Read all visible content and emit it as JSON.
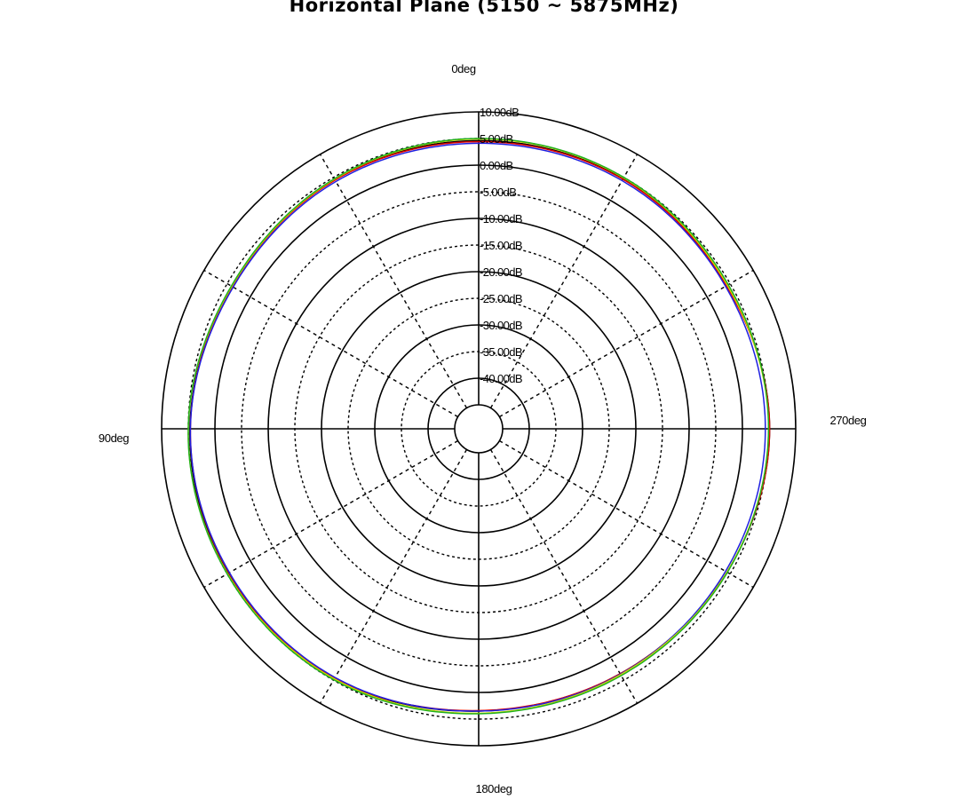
{
  "chart_data": {
    "type": "polar-line",
    "title": "Horizontal Plane (5150 ~ 5875MHz)",
    "r_axis": {
      "unit": "dB",
      "range": [
        -45,
        10
      ],
      "tick_values": [
        10,
        5,
        0,
        -5,
        -10,
        -15,
        -20,
        -25,
        -30,
        -35,
        -40
      ],
      "tick_labels": [
        "10.00dB",
        "5.00dB",
        "0.00dB",
        "-5.00dB",
        "-10.00dB",
        "-15.00dB",
        "-20.00dB",
        "-25.00dB",
        "-30.00dB",
        "-35.00dB",
        "-40.00dB"
      ],
      "solid_rings": [
        10,
        0,
        -10,
        -20,
        -30,
        -40
      ],
      "dashed_rings": [
        5,
        -5,
        -15,
        -25,
        -35
      ]
    },
    "angle_axis": {
      "direction": "counterclockwise",
      "zero_at": "top",
      "labels": [
        {
          "angle": 0,
          "text": "0deg"
        },
        {
          "angle": 90,
          "text": "90deg"
        },
        {
          "angle": 180,
          "text": "180deg"
        },
        {
          "angle": 270,
          "text": "270deg"
        }
      ],
      "spokes_every_deg": 30
    },
    "grid": true,
    "legend": "none",
    "series": [
      {
        "color": "#000000",
        "angles": [
          0,
          30,
          60,
          90,
          120,
          150,
          180,
          210,
          240,
          270,
          300,
          330
        ],
        "values": [
          4.6,
          4.5,
          3.9,
          4.7,
          4.8,
          4.6,
          3.5,
          3.6,
          4.3,
          5.1,
          4.3,
          4.7
        ]
      },
      {
        "color": "#e00000",
        "angles": [
          0,
          30,
          60,
          90,
          120,
          150,
          180,
          210,
          240,
          270,
          300,
          330
        ],
        "values": [
          4.4,
          4.4,
          3.9,
          4.6,
          4.6,
          4.5,
          3.4,
          3.6,
          4.3,
          5.1,
          4.2,
          4.6
        ]
      },
      {
        "color": "#2020e0",
        "angles": [
          0,
          30,
          60,
          90,
          120,
          150,
          180,
          210,
          240,
          270,
          300,
          330
        ],
        "values": [
          4.1,
          4.1,
          3.7,
          4.6,
          4.5,
          4.4,
          3.5,
          3.7,
          4.0,
          4.3,
          4.0,
          4.3
        ]
      },
      {
        "color": "#d8d800",
        "angles": [
          0,
          30,
          60,
          90,
          120,
          150,
          180,
          210,
          240,
          270,
          300,
          330
        ],
        "values": [
          4.9,
          4.6,
          4.0,
          5.0,
          4.9,
          4.7,
          3.9,
          3.8,
          4.3,
          4.9,
          4.4,
          4.9
        ]
      },
      {
        "color": "#20b020",
        "angles": [
          0,
          30,
          60,
          90,
          120,
          150,
          180,
          210,
          240,
          270,
          300,
          330
        ],
        "values": [
          5.0,
          4.7,
          4.1,
          5.0,
          5.0,
          4.9,
          4.0,
          4.0,
          4.4,
          4.9,
          4.6,
          5.0
        ]
      }
    ]
  }
}
